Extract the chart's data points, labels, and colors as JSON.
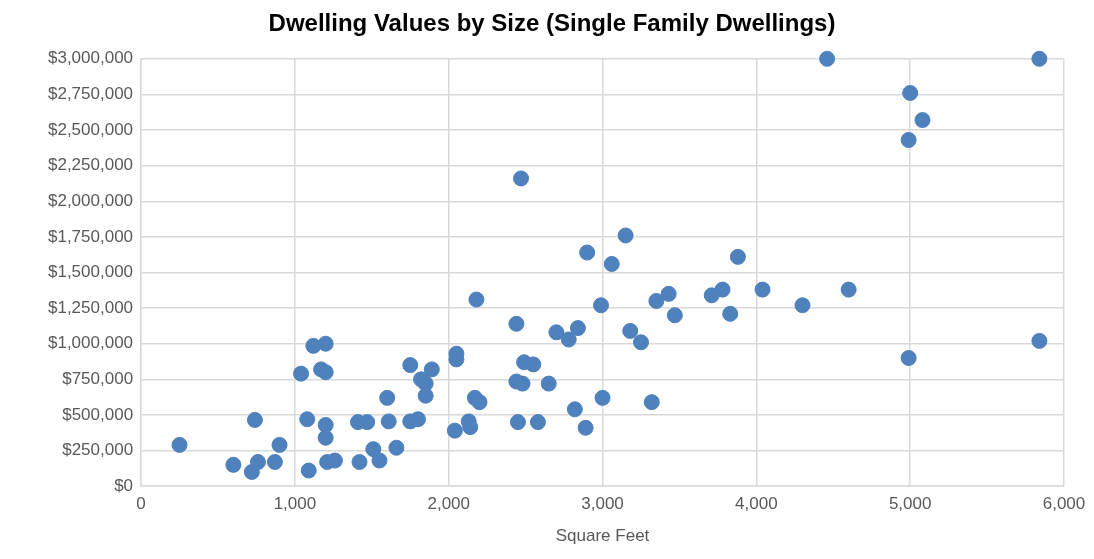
{
  "chart_data": {
    "type": "scatter",
    "title": "Dwelling Values by Size (Single Family Dwellings)",
    "xlabel": "Square Feet",
    "x": [
      250,
      600,
      720,
      740,
      760,
      870,
      900,
      1040,
      1080,
      1090,
      1120,
      1170,
      1200,
      1200,
      1200,
      1200,
      1210,
      1260,
      1410,
      1420,
      1470,
      1510,
      1550,
      1600,
      1610,
      1660,
      1750,
      1750,
      1800,
      1820,
      1850,
      1850,
      1890,
      2040,
      2050,
      2050,
      2130,
      2140,
      2170,
      2180,
      2200,
      2440,
      2440,
      2450,
      2470,
      2480,
      2490,
      2550,
      2580,
      2650,
      2700,
      2780,
      2820,
      2840,
      2890,
      2900,
      2990,
      3000,
      3060,
      3150,
      3180,
      3250,
      3320,
      3350,
      3430,
      3470,
      3710,
      3780,
      3830,
      3880,
      4040,
      4300,
      4460,
      4600,
      4990,
      4990,
      5000,
      5080,
      5840,
      5840
    ],
    "series": [
      {
        "color": "#4f81bd",
        "values": [
          290000,
          150000,
          100000,
          465000,
          170000,
          170000,
          290000,
          790000,
          470000,
          110000,
          985000,
          820000,
          1000000,
          800000,
          430000,
          340000,
          170000,
          180000,
          450000,
          170000,
          450000,
          260000,
          180000,
          620000,
          455000,
          270000,
          850000,
          455000,
          470000,
          750000,
          720000,
          635000,
          820000,
          390000,
          930000,
          890000,
          455000,
          415000,
          620000,
          1310000,
          590000,
          1140000,
          735000,
          450000,
          2160000,
          720000,
          870000,
          855000,
          450000,
          720000,
          1080000,
          1030000,
          540000,
          1110000,
          410000,
          1640000,
          1270000,
          620000,
          1560000,
          1760000,
          1090000,
          1010000,
          590000,
          1300000,
          1350000,
          1200000,
          1340000,
          1380000,
          1210000,
          1610000,
          1380000,
          1270000,
          3000000,
          1380000,
          2430000,
          900000,
          2760000,
          2570000,
          3000000,
          1020000
        ]
      }
    ],
    "xlim": [
      0,
      6000
    ],
    "xticks": [
      {
        "value": 0,
        "label": "0"
      },
      {
        "value": 1000,
        "label": "1,000"
      },
      {
        "value": 2000,
        "label": "2,000"
      },
      {
        "value": 3000,
        "label": "3,000"
      },
      {
        "value": 4000,
        "label": "4,000"
      },
      {
        "value": 5000,
        "label": "5,000"
      },
      {
        "value": 6000,
        "label": "6,000"
      }
    ],
    "ylim": [
      0,
      3000000
    ],
    "yticks": [
      {
        "value": 0,
        "label": "$0"
      },
      {
        "value": 250000,
        "label": "$250,000"
      },
      {
        "value": 500000,
        "label": "$500,000"
      },
      {
        "value": 750000,
        "label": "$750,000"
      },
      {
        "value": 1000000,
        "label": "$1,000,000"
      },
      {
        "value": 1250000,
        "label": "$1,250,000"
      },
      {
        "value": 1500000,
        "label": "$1,500,000"
      },
      {
        "value": 1750000,
        "label": "$1,750,000"
      },
      {
        "value": 2000000,
        "label": "$2,000,000"
      },
      {
        "value": 2250000,
        "label": "$2,250,000"
      },
      {
        "value": 2500000,
        "label": "$2,500,000"
      },
      {
        "value": 2750000,
        "label": "$2,750,000"
      },
      {
        "value": 3000000,
        "label": "$3,000,000"
      }
    ],
    "grid": true,
    "marker": "circle",
    "legend": false
  }
}
